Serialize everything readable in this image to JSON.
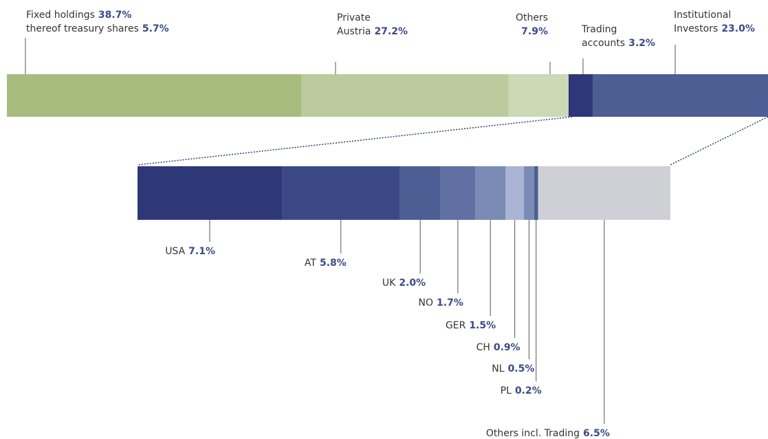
{
  "chart_data": [
    {
      "type": "stacked-bar",
      "categories": [
        [
          "Fixed holdings"
        ],
        [
          "Private",
          "Austria"
        ],
        [
          "Others"
        ],
        [
          "Trading",
          "accounts"
        ],
        [
          "Institutional",
          "Investors"
        ]
      ],
      "values": [
        38.7,
        27.2,
        7.9,
        3.2,
        23.0
      ],
      "value_labels": [
        "38.7%",
        "27.2%",
        "7.9%",
        "3.2%",
        "23.0%"
      ],
      "colors": [
        "#a9bc80",
        "#bccb9e",
        "#cbd9b5",
        "#2e3879",
        "#4d5e94"
      ],
      "annotation": {
        "text": "thereof treasury shares",
        "value": 5.7,
        "value_label": "5.7%"
      }
    },
    {
      "type": "stacked-bar",
      "categories": [
        "USA",
        "AT",
        "UK",
        "NO",
        "GER",
        "CH",
        "NL",
        "PL",
        "Others incl. Trading"
      ],
      "values": [
        7.1,
        5.8,
        2.0,
        1.7,
        1.5,
        0.9,
        0.5,
        0.2,
        6.5
      ],
      "value_labels": [
        "7.1%",
        "5.8%",
        "2.0%",
        "1.7%",
        "1.5%",
        "0.9%",
        "0.5%",
        "0.2%",
        "6.5%"
      ],
      "colors": [
        "#2e3879",
        "#3b4a87",
        "#4d5e94",
        "#6070a2",
        "#7a8bb5",
        "#aab4d4",
        "#7a8bb5",
        "#4d5e94",
        "#cfd0d6"
      ]
    }
  ]
}
